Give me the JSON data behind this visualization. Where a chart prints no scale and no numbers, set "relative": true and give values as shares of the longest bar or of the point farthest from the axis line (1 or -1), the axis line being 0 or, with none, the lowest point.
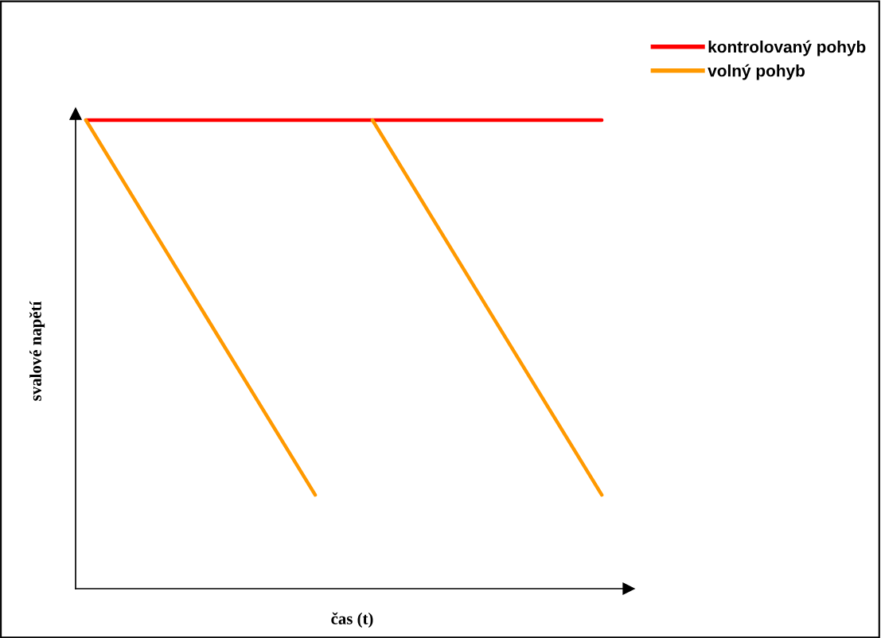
{
  "chart_data": {
    "type": "line",
    "relative": true,
    "xlabel": "čas (t)",
    "ylabel": "svalové napětí",
    "categories": [
      null,
      null,
      null,
      null,
      null,
      null,
      null,
      null,
      null,
      null
    ],
    "series": [
      {
        "name": "kontrolovaný pohyb",
        "color": "#ff0000",
        "values": [
          1,
          1,
          1,
          1,
          1,
          1,
          1,
          1,
          1,
          1
        ]
      },
      {
        "name": "volný pohyb",
        "color": "#ff9900",
        "values": [
          1,
          0.8,
          0.6,
          0.4,
          0.2,
          null,
          null,
          null,
          null,
          null
        ]
      },
      {
        "color": "#ff9900",
        "values": [
          null,
          null,
          null,
          null,
          null,
          1,
          0.8,
          0.6,
          0.4,
          0.2
        ]
      }
    ],
    "legend": "top right",
    "grid": false,
    "marker": "none",
    "line_style": "solid",
    "tick_labels": false
  }
}
